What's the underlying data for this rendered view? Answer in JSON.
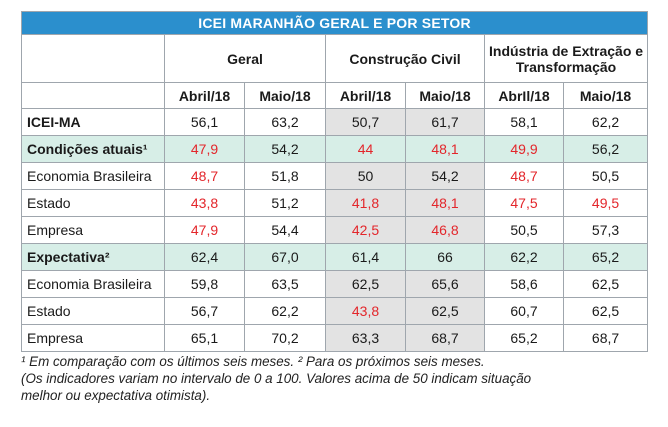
{
  "title": "ICEI MARANHÃO GERAL E POR SETOR",
  "groups": [
    "Geral",
    "Construção Civil",
    "Indústria de Extração e Transformação"
  ],
  "subheaders": [
    "Abril/18",
    "Maio/18",
    "Abril/18",
    "Maio/18",
    "AbrIl/18",
    "Maio/18"
  ],
  "rows": [
    {
      "label": "ICEI-MA",
      "values": [
        "56,1",
        "63,2",
        "50,7",
        "61,7",
        "58,1",
        "62,2"
      ]
    },
    {
      "label": "Condições atuais¹",
      "values": [
        "47,9",
        "54,2",
        "44",
        "48,1",
        "49,9",
        "56,2"
      ]
    },
    {
      "label": "Economia Brasileira",
      "values": [
        "48,7",
        "51,8",
        "50",
        "54,2",
        "48,7",
        "50,5"
      ]
    },
    {
      "label": "Estado",
      "values": [
        "43,8",
        "51,2",
        "41,8",
        "48,1",
        "47,5",
        "49,5"
      ]
    },
    {
      "label": "Empresa",
      "values": [
        "47,9",
        "54,4",
        "42,5",
        "46,8",
        "50,5",
        "57,3"
      ]
    },
    {
      "label": "Expectativa²",
      "values": [
        "62,4",
        "67,0",
        "61,4",
        "66",
        "62,2",
        "65,2"
      ]
    },
    {
      "label": "Economia Brasileira",
      "values": [
        "59,8",
        "63,5",
        "62,5",
        "65,6",
        "58,6",
        "62,5"
      ]
    },
    {
      "label": "Estado",
      "values": [
        "56,7",
        "62,2",
        "43,8",
        "62,5",
        "60,7",
        "62,5"
      ]
    },
    {
      "label": "Empresa",
      "values": [
        "65,1",
        "70,2",
        "63,3",
        "68,7",
        "65,2",
        "68,7"
      ]
    }
  ],
  "notes": {
    "line1": "¹ Em comparação com os últimos seis meses. ² Para os próximos seis meses.",
    "line2": "(Os indicadores variam no intervalo de 0 a 100. Valores acima de 50 indicam situação",
    "line3": "melhor ou expectativa otimista)."
  },
  "colors": {
    "header": "#2b8fcd",
    "highlight_row": "#d7eee7",
    "construction_column": "#e3e3e3",
    "below_50": "#e3262b"
  }
}
